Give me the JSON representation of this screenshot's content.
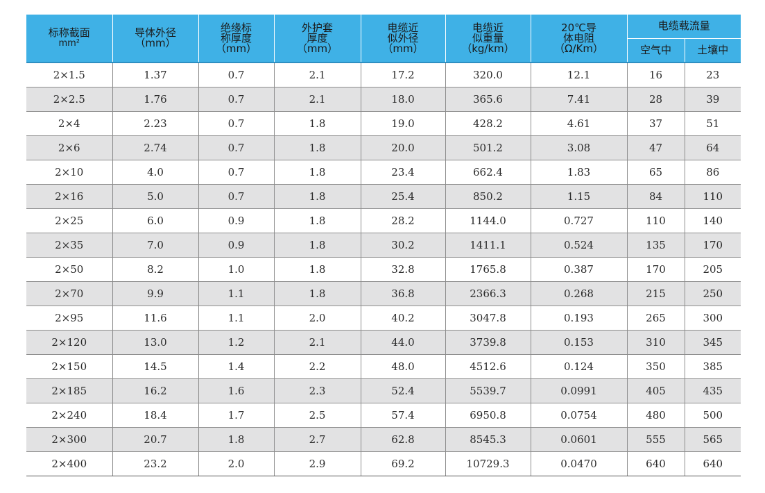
{
  "table": {
    "headers": {
      "nominal_section": [
        "标称截面",
        "mm²"
      ],
      "conductor_diameter": [
        "导体外径",
        "（mm）"
      ],
      "insulation_thickness": [
        "绝缘标",
        "称厚度",
        "（mm）"
      ],
      "sheath_thickness": [
        "外护套",
        "厚度",
        "（mm）"
      ],
      "cable_diameter": [
        "电缆近",
        "似外径",
        "（mm）"
      ],
      "cable_weight": [
        "电缆近",
        "似重量",
        "（kg/km）"
      ],
      "resistance": [
        "20℃导",
        "体电阻",
        "（Ω/Km）"
      ],
      "current_capacity": "电缆载流量",
      "in_air": "空气中",
      "in_soil": "土壤中"
    },
    "rows": [
      [
        "2×1.5",
        "1.37",
        "0.7",
        "2.1",
        "17.2",
        "320.0",
        "12.1",
        "16",
        "23"
      ],
      [
        "2×2.5",
        "1.76",
        "0.7",
        "2.1",
        "18.0",
        "365.6",
        "7.41",
        "28",
        "39"
      ],
      [
        "2×4",
        "2.23",
        "0.7",
        "1.8",
        "19.0",
        "428.2",
        "4.61",
        "37",
        "51"
      ],
      [
        "2×6",
        "2.74",
        "0.7",
        "1.8",
        "20.0",
        "501.2",
        "3.08",
        "47",
        "64"
      ],
      [
        "2×10",
        "4.0",
        "0.7",
        "1.8",
        "23.4",
        "662.4",
        "1.83",
        "65",
        "86"
      ],
      [
        "2×16",
        "5.0",
        "0.7",
        "1.8",
        "25.4",
        "850.2",
        "1.15",
        "84",
        "110"
      ],
      [
        "2×25",
        "6.0",
        "0.9",
        "1.8",
        "28.2",
        "1144.0",
        "0.727",
        "110",
        "140"
      ],
      [
        "2×35",
        "7.0",
        "0.9",
        "1.8",
        "30.2",
        "1411.1",
        "0.524",
        "135",
        "170"
      ],
      [
        "2×50",
        "8.2",
        "1.0",
        "1.8",
        "32.8",
        "1765.8",
        "0.387",
        "170",
        "205"
      ],
      [
        "2×70",
        "9.9",
        "1.1",
        "1.8",
        "36.8",
        "2366.3",
        "0.268",
        "215",
        "250"
      ],
      [
        "2×95",
        "11.6",
        "1.1",
        "2.0",
        "40.2",
        "3047.8",
        "0.193",
        "265",
        "300"
      ],
      [
        "2×120",
        "13.0",
        "1.2",
        "2.1",
        "44.0",
        "3739.8",
        "0.153",
        "310",
        "345"
      ],
      [
        "2×150",
        "14.5",
        "1.4",
        "2.2",
        "48.0",
        "4512.6",
        "0.124",
        "350",
        "385"
      ],
      [
        "2×185",
        "16.2",
        "1.6",
        "2.3",
        "52.4",
        "5539.7",
        "0.0991",
        "405",
        "435"
      ],
      [
        "2×240",
        "18.4",
        "1.7",
        "2.5",
        "57.4",
        "6950.8",
        "0.0754",
        "480",
        "500"
      ],
      [
        "2×300",
        "20.7",
        "1.8",
        "2.7",
        "62.8",
        "8545.3",
        "0.0601",
        "555",
        "565"
      ],
      [
        "2×400",
        "23.2",
        "2.0",
        "2.9",
        "69.2",
        "10729.3",
        "0.0470",
        "640",
        "640"
      ]
    ]
  },
  "colors": {
    "header_background": "#3fb1e6",
    "alternate_row_background": "#e2e2e3",
    "grid_line": "#8c8c8c"
  }
}
